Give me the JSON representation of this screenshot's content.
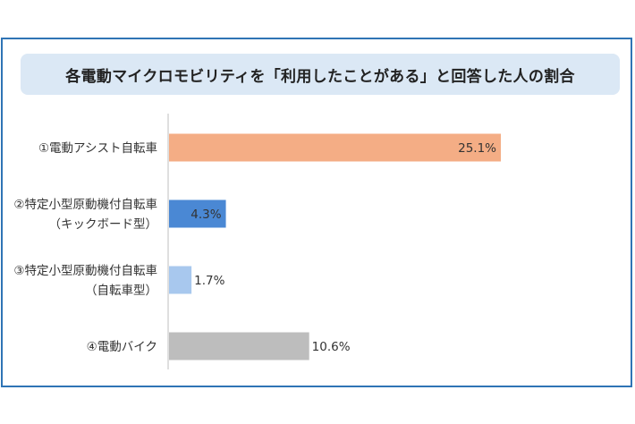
{
  "chart_data": {
    "type": "bar",
    "orientation": "horizontal",
    "title": "各電動マイクロモビリティを「利用したことがある」と回答した人の割合",
    "categories": [
      [
        "①電動アシスト自転車"
      ],
      [
        "②特定小型原動機付自転車",
        "（キックボード型）"
      ],
      [
        "③特定小型原動機付自転車",
        "（自転車型）"
      ],
      [
        "④電動バイク"
      ]
    ],
    "values": [
      25.1,
      4.3,
      1.7,
      10.6
    ],
    "data_labels": [
      "25.1%",
      "4.3%",
      "1.7%",
      "10.6%"
    ],
    "colors": [
      "#f4ad85",
      "#4a88d4",
      "#a8c8ee",
      "#bdbdbd"
    ],
    "label_colors": [
      "#333333",
      "#ffffff",
      "#333333",
      "#333333"
    ],
    "label_inside": [
      true,
      true,
      false,
      false
    ],
    "xlim": [
      0,
      30
    ],
    "grid": false,
    "legend": "none"
  }
}
